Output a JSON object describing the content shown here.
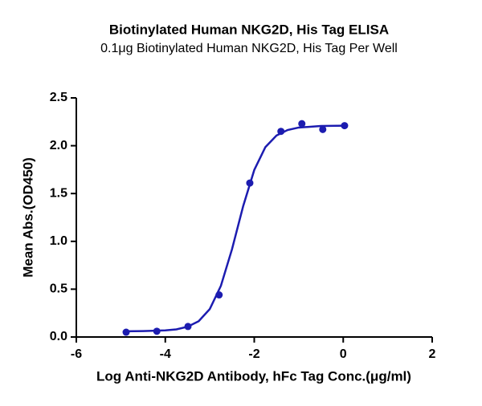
{
  "chart_data": {
    "type": "scatter",
    "title": "Biotinylated Human NKG2D, His Tag ELISA",
    "subtitle": "0.1μg Biotinylated Human NKG2D, His Tag Per Well",
    "x_label": "Log Anti-NKG2D Antibody, hFc Tag Conc.(μg/ml)",
    "y_label": "Mean Abs.(OD450)",
    "color": "#1c1cb0",
    "x": [
      -4.88,
      -4.19,
      -3.49,
      -2.79,
      -2.1,
      -1.4,
      -0.93,
      -0.46,
      0.03
    ],
    "values": [
      0.05,
      0.06,
      0.11,
      0.44,
      1.61,
      2.15,
      2.23,
      2.17,
      2.21
    ],
    "fit": {
      "x": [
        -4.9,
        -4.5,
        -4.0,
        -3.75,
        -3.5,
        -3.25,
        -3.0,
        -2.75,
        -2.5,
        -2.25,
        -2.0,
        -1.75,
        -1.5,
        -1.25,
        -1.0,
        -0.5,
        0.05
      ],
      "values": [
        0.06,
        0.062,
        0.069,
        0.08,
        0.107,
        0.165,
        0.292,
        0.535,
        0.918,
        1.367,
        1.746,
        1.985,
        2.107,
        2.164,
        2.19,
        2.206,
        2.21
      ]
    },
    "xlim": [
      -6,
      2
    ],
    "xticks": [
      -6,
      -4,
      -2,
      0,
      2
    ],
    "ylim": [
      0,
      2.5
    ],
    "yticks": [
      {
        "value": 0,
        "label": "0.0"
      },
      0.5,
      {
        "value": 1,
        "label": "1.0"
      },
      1.5,
      {
        "value": 2,
        "label": "2.0"
      },
      2.5
    ]
  }
}
